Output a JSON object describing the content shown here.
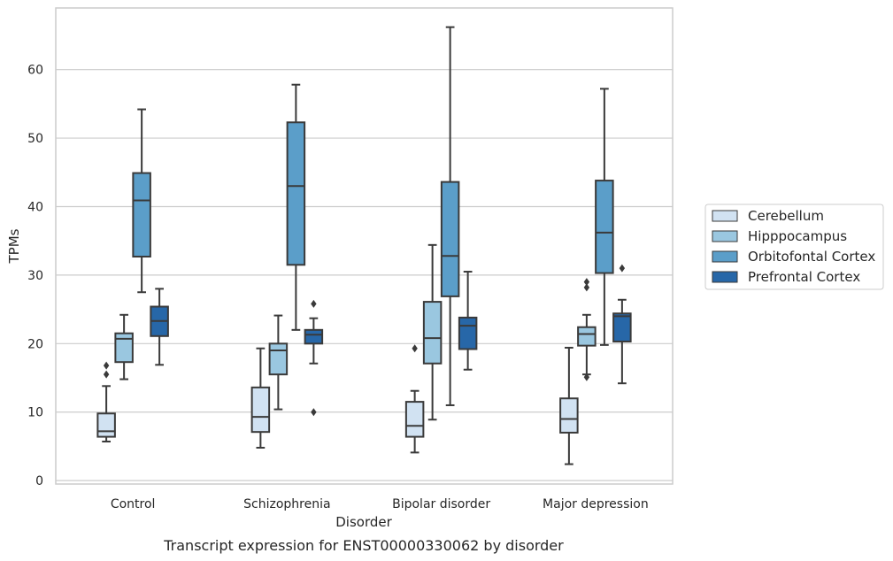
{
  "colors": {
    "grid": "#cccccc",
    "frame": "#cccccc",
    "line": "#3a3a3a",
    "series": [
      "#d1e2f2",
      "#9ac7e0",
      "#5b9ec9",
      "#2767a8"
    ]
  },
  "chart_data": {
    "type": "box",
    "caption": "Transcript expression for ENST00000330062 by disorder",
    "xlabel": "Disorder",
    "ylabel": "TPMs",
    "ylim": [
      -0.5,
      69
    ],
    "yticks": [
      0,
      10,
      20,
      30,
      40,
      50,
      60
    ],
    "grid": true,
    "legend_position": "right",
    "categories": [
      "Control",
      "Schizophrenia",
      "Bipolar disorder",
      "Major depression"
    ],
    "series": [
      {
        "name": "Cerebellum",
        "boxes": [
          {
            "whisker_low": 5.7,
            "q1": 6.4,
            "median": 7.2,
            "q3": 9.8,
            "whisker_high": 13.8,
            "outliers": [
              15.5,
              16.8
            ]
          },
          {
            "whisker_low": 4.8,
            "q1": 7.1,
            "median": 9.3,
            "q3": 13.6,
            "whisker_high": 19.3,
            "outliers": []
          },
          {
            "whisker_low": 4.1,
            "q1": 6.4,
            "median": 8.0,
            "q3": 11.5,
            "whisker_high": 13.1,
            "outliers": [
              19.3
            ]
          },
          {
            "whisker_low": 2.4,
            "q1": 7.0,
            "median": 9.0,
            "q3": 12.0,
            "whisker_high": 19.4,
            "outliers": []
          }
        ]
      },
      {
        "name": "Hipppocampus",
        "boxes": [
          {
            "whisker_low": 14.8,
            "q1": 17.3,
            "median": 20.7,
            "q3": 21.5,
            "whisker_high": 24.2,
            "outliers": []
          },
          {
            "whisker_low": 10.4,
            "q1": 15.5,
            "median": 19.0,
            "q3": 20.0,
            "whisker_high": 24.1,
            "outliers": []
          },
          {
            "whisker_low": 8.9,
            "q1": 17.1,
            "median": 20.8,
            "q3": 26.1,
            "whisker_high": 34.4,
            "outliers": []
          },
          {
            "whisker_low": 15.5,
            "q1": 19.7,
            "median": 21.4,
            "q3": 22.4,
            "whisker_high": 24.2,
            "outliers": [
              15.1,
              28.2,
              29.0
            ]
          }
        ]
      },
      {
        "name": "Orbitofontal Cortex",
        "boxes": [
          {
            "whisker_low": 27.5,
            "q1": 32.7,
            "median": 40.9,
            "q3": 44.9,
            "whisker_high": 54.2,
            "outliers": []
          },
          {
            "whisker_low": 22.0,
            "q1": 31.5,
            "median": 43.0,
            "q3": 52.3,
            "whisker_high": 57.8,
            "outliers": []
          },
          {
            "whisker_low": 11.0,
            "q1": 26.9,
            "median": 32.8,
            "q3": 43.6,
            "whisker_high": 66.2,
            "outliers": []
          },
          {
            "whisker_low": 19.8,
            "q1": 30.3,
            "median": 36.2,
            "q3": 43.8,
            "whisker_high": 57.2,
            "outliers": []
          }
        ]
      },
      {
        "name": "Prefrontal Cortex",
        "boxes": [
          {
            "whisker_low": 16.9,
            "q1": 21.1,
            "median": 23.3,
            "q3": 25.4,
            "whisker_high": 28.0,
            "outliers": []
          },
          {
            "whisker_low": 17.1,
            "q1": 20.0,
            "median": 21.3,
            "q3": 22.0,
            "whisker_high": 23.7,
            "outliers": [
              10.0,
              25.8
            ]
          },
          {
            "whisker_low": 16.2,
            "q1": 19.2,
            "median": 22.6,
            "q3": 23.8,
            "whisker_high": 30.5,
            "outliers": []
          },
          {
            "whisker_low": 14.2,
            "q1": 20.3,
            "median": 24.0,
            "q3": 24.4,
            "whisker_high": 26.4,
            "outliers": [
              31.0
            ]
          }
        ]
      }
    ]
  }
}
